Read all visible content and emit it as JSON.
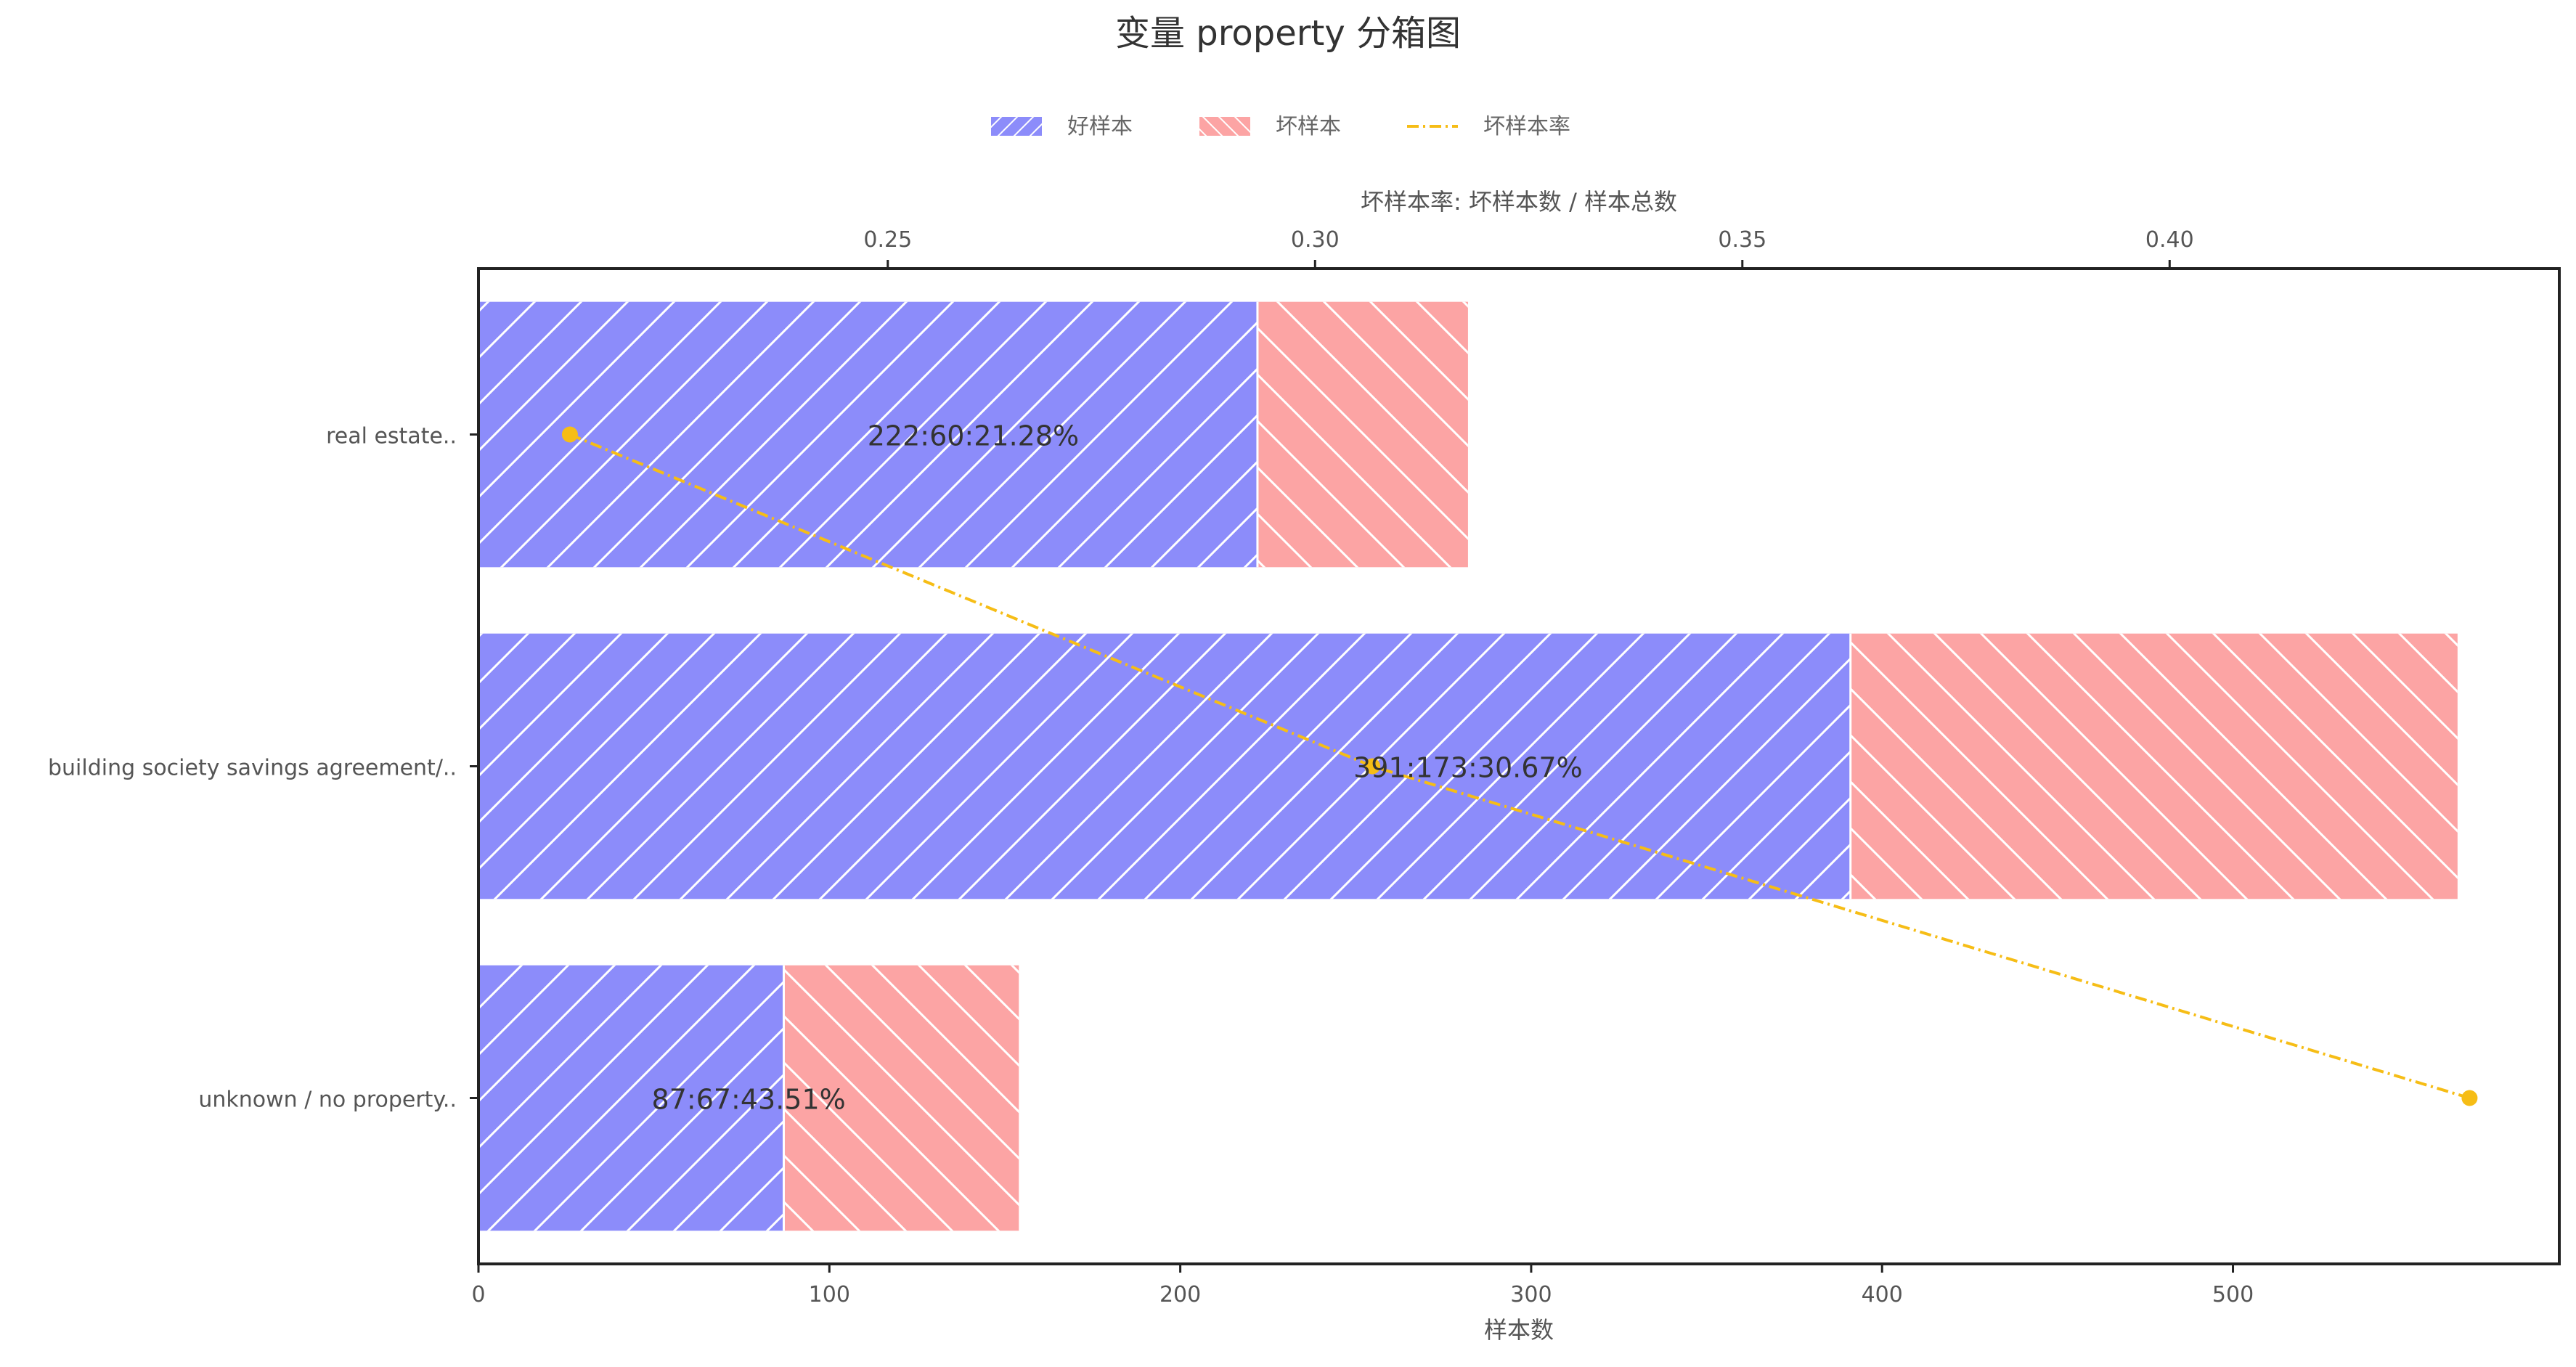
{
  "chart_data": {
    "type": "bar",
    "orientation": "horizontal",
    "stacked": true,
    "title": "变量 property 分箱图",
    "xlabel": "样本数",
    "x2label": "坏样本率: 坏样本数 / 样本总数",
    "categories": [
      "real estate..",
      "building society savings agreement/..",
      "unknown / no property.."
    ],
    "xlim": [
      0,
      593
    ],
    "xticks": [
      0,
      100,
      200,
      300,
      400,
      500
    ],
    "x2lim": [
      0.2021,
      0.4456
    ],
    "x2ticks": [
      0.25,
      0.3,
      0.35,
      0.4
    ],
    "x2ticklabels": [
      "0.25",
      "0.30",
      "0.35",
      "0.40"
    ],
    "series": [
      {
        "name": "好样本",
        "values": [
          222,
          391,
          87
        ],
        "color": "#8c8cfa",
        "hatch": "forward"
      },
      {
        "name": "坏样本",
        "values": [
          60,
          173,
          67
        ],
        "color": "#fca4a4",
        "hatch": "backward"
      },
      {
        "name": "坏样本率",
        "values": [
          0.2128,
          0.3067,
          0.4351
        ],
        "color": "#f6bd16",
        "axis": "top",
        "style": "dash-dot"
      }
    ],
    "bar_labels": [
      "222:60:21.28%",
      "391:173:30.67%",
      "87:67:43.51%"
    ],
    "legend_position": "top-center"
  }
}
